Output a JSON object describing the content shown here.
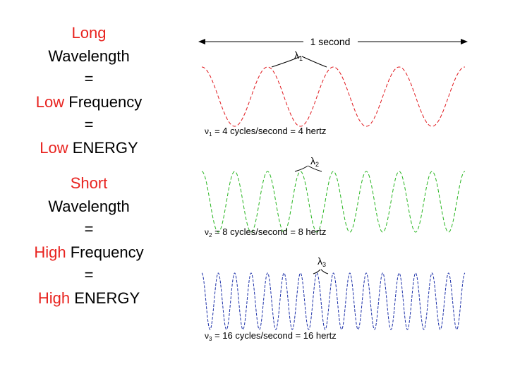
{
  "left": {
    "block1": {
      "line1": "Long",
      "line2": "Wavelength",
      "eq1": "=",
      "line3_red": "Low",
      "line3_rest": " Frequency",
      "eq2": "=",
      "line4_red": "Low",
      "line4_rest": " ENERGY"
    },
    "block2": {
      "line1": "Short",
      "line2": "Wavelength",
      "eq1": "=",
      "line3_red": "High",
      "line3_rest": " Frequency",
      "eq2": "=",
      "line4_red": "High",
      "line4_rest": " ENERGY"
    }
  },
  "figure": {
    "duration_label": "1 second",
    "waves": [
      {
        "symbol": "λ",
        "subscript": "1",
        "freq_symbol": "ν",
        "freq_sub": "1",
        "caption": " = 4 cycles/second = 4 hertz",
        "cycles": 4,
        "color": "#e0161b"
      },
      {
        "symbol": "λ",
        "subscript": "2",
        "freq_symbol": "ν",
        "freq_sub": "2",
        "caption": " = 8 cycles/second = 8 hertz",
        "cycles": 8,
        "color": "#27b51f"
      },
      {
        "symbol": "λ",
        "subscript": "3",
        "freq_symbol": "ν",
        "freq_sub": "3",
        "caption": " = 16 cycles/second = 16 hertz",
        "cycles": 16,
        "color": "#1b2fa8"
      }
    ]
  }
}
